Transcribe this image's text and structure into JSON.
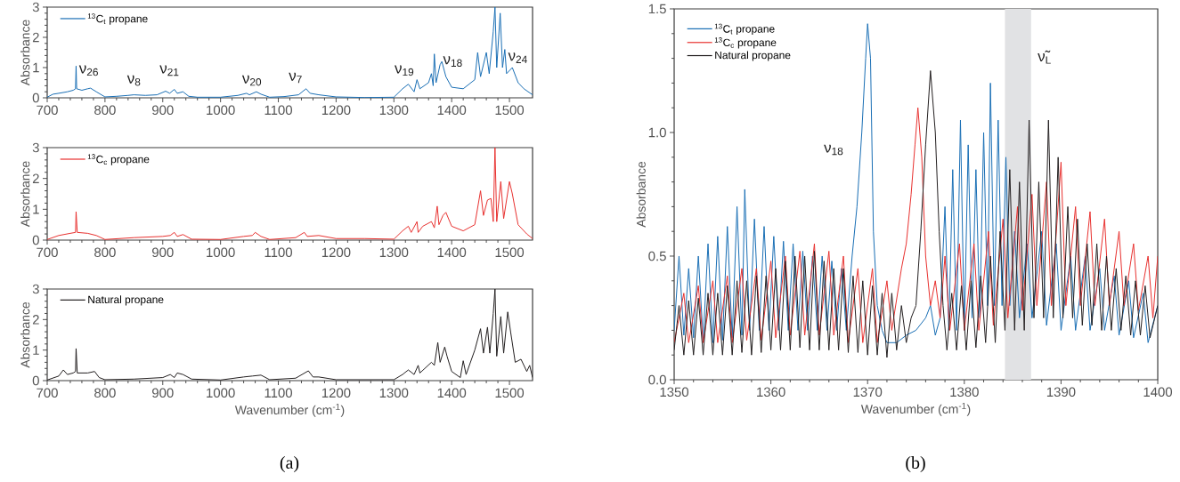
{
  "chart_data": [
    {
      "type": "line",
      "ylabel": "Absorbance",
      "xlim": [
        700,
        1540
      ],
      "ylim": [
        0,
        3
      ],
      "xticks": [
        700,
        800,
        900,
        1000,
        1100,
        1200,
        1300,
        1400,
        1500
      ],
      "yticks": [
        0,
        1,
        2,
        3
      ],
      "legend": "top left",
      "series": [
        {
          "name": "$^{13}$C$_{t}$ propane",
          "color": "#1a6fb5",
          "x": [
            700,
            710,
            720,
            735,
            745,
            749,
            750,
            751,
            760,
            770,
            775,
            785,
            800,
            820,
            840,
            850,
            870,
            890,
            905,
            912,
            920,
            925,
            935,
            945,
            960,
            1000,
            1030,
            1045,
            1050,
            1062,
            1070,
            1085,
            1110,
            1135,
            1148,
            1155,
            1170,
            1200,
            1250,
            1300,
            1315,
            1325,
            1335,
            1340,
            1345,
            1360,
            1365,
            1368,
            1370,
            1373,
            1380,
            1383,
            1390,
            1400,
            1420,
            1440,
            1445,
            1450,
            1460,
            1465,
            1472,
            1475,
            1478,
            1484,
            1488,
            1492,
            1495,
            1505,
            1515,
            1525,
            1540
          ],
          "values": [
            0.02,
            0.12,
            0.15,
            0.2,
            0.25,
            0.3,
            1.05,
            0.3,
            0.25,
            0.3,
            0.32,
            0.2,
            0.03,
            0.05,
            0.08,
            0.1,
            0.08,
            0.1,
            0.22,
            0.15,
            0.28,
            0.15,
            0.2,
            0.05,
            0.02,
            0.02,
            0.08,
            0.15,
            0.1,
            0.2,
            0.12,
            0.02,
            0.04,
            0.1,
            0.3,
            0.15,
            0.1,
            0.03,
            0.01,
            0.02,
            0.3,
            0.45,
            0.2,
            0.6,
            0.3,
            0.5,
            0.8,
            0.4,
            1.45,
            0.5,
            1.1,
            1.2,
            0.7,
            0.35,
            0.3,
            0.6,
            1.5,
            0.7,
            1.5,
            0.8,
            2.2,
            3.0,
            1.0,
            2.8,
            1.0,
            1.6,
            0.8,
            1.0,
            0.5,
            0.3,
            0.1
          ]
        }
      ],
      "annotations": [
        "ν$_{26}$",
        "ν$_{8}$",
        "ν$_{21}$",
        "ν$_{20}$",
        "ν$_{7}$",
        "ν$_{19}$",
        "ν$_{18}$",
        "ν$_{24}$"
      ]
    },
    {
      "type": "line",
      "ylabel": "Absorbance",
      "xlim": [
        700,
        1540
      ],
      "ylim": [
        0,
        3
      ],
      "xticks": [
        700,
        800,
        900,
        1000,
        1100,
        1200,
        1300,
        1400,
        1500
      ],
      "yticks": [
        0,
        1,
        2,
        3
      ],
      "legend": "top left",
      "series": [
        {
          "name": "$^{13}$C$_{c}$ propane",
          "color": "#e8312f",
          "x": [
            700,
            720,
            740,
            749,
            750,
            752,
            770,
            785,
            800,
            850,
            900,
            913,
            920,
            925,
            935,
            950,
            1000,
            1040,
            1055,
            1060,
            1070,
            1085,
            1130,
            1145,
            1150,
            1170,
            1200,
            1250,
            1300,
            1315,
            1325,
            1330,
            1340,
            1342,
            1350,
            1365,
            1370,
            1375,
            1378,
            1385,
            1390,
            1400,
            1420,
            1440,
            1450,
            1455,
            1462,
            1468,
            1472,
            1475,
            1478,
            1485,
            1490,
            1500,
            1505,
            1515,
            1530,
            1540
          ],
          "values": [
            0.02,
            0.15,
            0.22,
            0.25,
            0.92,
            0.25,
            0.22,
            0.15,
            0.02,
            0.08,
            0.12,
            0.15,
            0.25,
            0.12,
            0.18,
            0.03,
            0.02,
            0.12,
            0.15,
            0.25,
            0.12,
            0.02,
            0.08,
            0.25,
            0.12,
            0.15,
            0.05,
            0.05,
            0.03,
            0.3,
            0.45,
            0.25,
            0.6,
            0.25,
            0.45,
            0.6,
            0.4,
            1.1,
            0.5,
            0.8,
            0.9,
            0.45,
            0.3,
            0.5,
            1.6,
            0.8,
            1.3,
            1.35,
            0.6,
            3.0,
            0.6,
            1.9,
            0.7,
            1.9,
            1.5,
            0.5,
            0.2,
            0.05
          ]
        }
      ]
    },
    {
      "type": "line",
      "xlabel": "Wavenumber (cm$^{-1}$)",
      "ylabel": "Absorbance",
      "xlim": [
        700,
        1540
      ],
      "ylim": [
        0,
        3
      ],
      "xticks": [
        700,
        800,
        900,
        1000,
        1100,
        1200,
        1300,
        1400,
        1500
      ],
      "yticks": [
        0,
        1,
        2,
        3
      ],
      "legend": "top left",
      "series": [
        {
          "name": "Natural propane",
          "color": "#231f20",
          "x": [
            700,
            720,
            728,
            735,
            745,
            749,
            750,
            752,
            770,
            782,
            790,
            800,
            850,
            900,
            913,
            920,
            925,
            935,
            950,
            1000,
            1040,
            1055,
            1070,
            1085,
            1130,
            1152,
            1160,
            1170,
            1200,
            1300,
            1315,
            1325,
            1335,
            1342,
            1345,
            1365,
            1370,
            1376,
            1380,
            1388,
            1392,
            1400,
            1415,
            1420,
            1425,
            1440,
            1450,
            1455,
            1462,
            1466,
            1472,
            1475,
            1478,
            1485,
            1490,
            1497,
            1502,
            1510,
            1520,
            1530,
            1535,
            1540
          ],
          "values": [
            0.02,
            0.15,
            0.35,
            0.2,
            0.25,
            0.3,
            1.05,
            0.25,
            0.25,
            0.3,
            0.1,
            0.03,
            0.05,
            0.1,
            0.2,
            0.1,
            0.25,
            0.2,
            0.05,
            0.02,
            0.12,
            0.15,
            0.18,
            0.03,
            0.08,
            0.32,
            0.12,
            0.12,
            0.03,
            0.03,
            0.2,
            0.35,
            0.2,
            0.5,
            0.25,
            0.6,
            0.5,
            1.25,
            0.6,
            1.1,
            0.8,
            0.3,
            0.1,
            0.65,
            0.2,
            1.0,
            1.7,
            0.9,
            1.75,
            0.9,
            2.2,
            3.0,
            0.8,
            2.1,
            0.9,
            2.25,
            1.6,
            0.6,
            0.7,
            0.3,
            0.5,
            0.1
          ]
        }
      ],
      "annotations": [
        "(a)"
      ]
    },
    {
      "type": "line",
      "xlabel": "Wavenumber (cm$^{-1}$)",
      "ylabel": "Absorbance",
      "xlim": [
        1350,
        1400
      ],
      "ylim": [
        0,
        1.5
      ],
      "xticks": [
        1350,
        1360,
        1370,
        1380,
        1390,
        1400
      ],
      "yticks": [
        {
          "value": 0,
          "label": "0.0"
        },
        {
          "value": 0.5,
          "label": "0.5"
        },
        {
          "value": 1,
          "label": "1.0"
        },
        {
          "value": 1.5,
          "label": "1.5"
        }
      ],
      "legend": "top left",
      "bands": [
        {
          "axis": "x",
          "from": 1384.2,
          "to": 1386.9,
          "color": "#e1e2e4"
        }
      ],
      "series": [
        {
          "name": "$^{13}$C$_{t}$ propane",
          "color": "#1a6fb5",
          "x": [
            1350,
            1350.5,
            1351,
            1351.5,
            1352,
            1352.5,
            1353,
            1353.5,
            1354,
            1354.5,
            1355,
            1355.5,
            1356,
            1356.5,
            1357,
            1357.3,
            1357.8,
            1358.3,
            1358.8,
            1359.3,
            1359.8,
            1360.3,
            1360.8,
            1361.3,
            1361.8,
            1362.3,
            1362.8,
            1363.3,
            1363.8,
            1364.3,
            1364.8,
            1365.3,
            1365.8,
            1366.3,
            1366.8,
            1367.3,
            1367.8,
            1368.4,
            1368.9,
            1369.4,
            1369.8,
            1370.0,
            1370.3,
            1370.6,
            1371,
            1371.5,
            1372,
            1373,
            1374,
            1375,
            1376,
            1376.5,
            1377,
            1377.5,
            1378,
            1378.4,
            1378.8,
            1379.2,
            1379.6,
            1380,
            1380.4,
            1380.8,
            1381.2,
            1381.6,
            1382,
            1382.4,
            1382.7,
            1383.1,
            1383.5,
            1383.9,
            1384.3,
            1384.7,
            1385.2,
            1385.7,
            1386.5,
            1387,
            1388,
            1388.5,
            1389.5,
            1390,
            1391,
            1391.5,
            1392.5,
            1393,
            1394,
            1394.5,
            1395.5,
            1396,
            1397,
            1397.5,
            1398.5,
            1399,
            1400
          ],
          "values": [
            0.2,
            0.5,
            0.18,
            0.45,
            0.17,
            0.5,
            0.16,
            0.55,
            0.15,
            0.58,
            0.16,
            0.62,
            0.17,
            0.7,
            0.18,
            0.77,
            0.2,
            0.65,
            0.2,
            0.62,
            0.2,
            0.58,
            0.2,
            0.56,
            0.2,
            0.55,
            0.2,
            0.52,
            0.2,
            0.5,
            0.2,
            0.5,
            0.2,
            0.48,
            0.2,
            0.45,
            0.2,
            0.5,
            0.7,
            1.0,
            1.3,
            1.44,
            1.3,
            0.6,
            0.3,
            0.2,
            0.15,
            0.15,
            0.18,
            0.2,
            0.25,
            0.3,
            0.18,
            0.25,
            0.7,
            0.2,
            0.85,
            0.2,
            1.05,
            0.2,
            0.95,
            0.25,
            0.85,
            0.25,
            1.0,
            0.3,
            1.2,
            0.3,
            1.05,
            0.3,
            0.9,
            0.3,
            0.6,
            0.25,
            0.55,
            0.25,
            0.6,
            0.22,
            0.55,
            0.2,
            0.5,
            0.2,
            0.5,
            0.2,
            0.45,
            0.2,
            0.42,
            0.18,
            0.4,
            0.17,
            0.35,
            0.15,
            0.3
          ]
        },
        {
          "name": "$^{13}$C$_{c}$ propane",
          "color": "#e8312f",
          "x": [
            1350,
            1351,
            1351.5,
            1352.5,
            1353,
            1354,
            1354.5,
            1355.5,
            1356,
            1357,
            1357.5,
            1358.5,
            1359,
            1360,
            1360.5,
            1361.5,
            1362,
            1363,
            1363.5,
            1364.5,
            1365,
            1366,
            1366.5,
            1367.5,
            1368,
            1369,
            1369.5,
            1370.5,
            1371,
            1372,
            1372.5,
            1373.5,
            1374,
            1374.5,
            1374.9,
            1375.2,
            1375.6,
            1376,
            1376.5,
            1377,
            1377.5,
            1378,
            1378.5,
            1379.5,
            1380,
            1381,
            1381.5,
            1382.5,
            1383,
            1384,
            1384.5,
            1385.5,
            1386,
            1387,
            1387.5,
            1388.5,
            1389,
            1390,
            1390.5,
            1391.5,
            1392,
            1393,
            1393.5,
            1394.5,
            1395,
            1396,
            1396.5,
            1397.5,
            1398,
            1399,
            1399.5,
            1400
          ],
          "values": [
            0.15,
            0.35,
            0.15,
            0.38,
            0.15,
            0.4,
            0.15,
            0.42,
            0.15,
            0.45,
            0.16,
            0.45,
            0.16,
            0.48,
            0.17,
            0.5,
            0.18,
            0.52,
            0.18,
            0.55,
            0.18,
            0.52,
            0.18,
            0.5,
            0.15,
            0.45,
            0.15,
            0.45,
            0.15,
            0.4,
            0.2,
            0.45,
            0.55,
            0.75,
            0.95,
            1.1,
            0.9,
            0.5,
            0.3,
            0.4,
            0.25,
            0.5,
            0.2,
            0.55,
            0.2,
            0.55,
            0.2,
            0.6,
            0.22,
            0.65,
            0.25,
            0.7,
            0.28,
            0.75,
            0.3,
            0.8,
            0.3,
            0.88,
            0.3,
            0.7,
            0.3,
            0.68,
            0.3,
            0.65,
            0.3,
            0.6,
            0.3,
            0.55,
            0.28,
            0.5,
            0.25,
            0.5
          ]
        },
        {
          "name": "Natural propane",
          "color": "#231f20",
          "x": [
            1350,
            1350.5,
            1351,
            1351.5,
            1352,
            1352.5,
            1353,
            1353.5,
            1354,
            1354.5,
            1355,
            1355.5,
            1356,
            1356.5,
            1357,
            1357.5,
            1358,
            1358.5,
            1359,
            1359.5,
            1360,
            1360.5,
            1361,
            1361.5,
            1362,
            1362.5,
            1363,
            1363.5,
            1364,
            1364.5,
            1365,
            1365.5,
            1366,
            1366.5,
            1367,
            1367.5,
            1368,
            1368.5,
            1369,
            1369.5,
            1370,
            1370.5,
            1371,
            1371.5,
            1372,
            1372.5,
            1373,
            1373.5,
            1374,
            1374.5,
            1375,
            1375.5,
            1376,
            1376.5,
            1377,
            1377.4,
            1377.8,
            1378.2,
            1378.7,
            1379.2,
            1379.7,
            1380.2,
            1380.7,
            1381.2,
            1381.7,
            1382.2,
            1382.7,
            1383.2,
            1383.7,
            1384.2,
            1384.7,
            1385.2,
            1385.7,
            1386.2,
            1386.7,
            1387.2,
            1387.7,
            1388.2,
            1388.7,
            1389.2,
            1389.7,
            1390.2,
            1390.7,
            1391.2,
            1391.7,
            1392.2,
            1392.7,
            1393.2,
            1393.7,
            1394.2,
            1394.7,
            1395.2,
            1395.7,
            1396.2,
            1396.7,
            1397.2,
            1397.7,
            1398.2,
            1398.7,
            1399.2,
            1400
          ],
          "values": [
            0.12,
            0.3,
            0.1,
            0.32,
            0.1,
            0.33,
            0.1,
            0.35,
            0.1,
            0.35,
            0.1,
            0.38,
            0.1,
            0.4,
            0.11,
            0.4,
            0.1,
            0.42,
            0.11,
            0.42,
            0.12,
            0.45,
            0.12,
            0.48,
            0.12,
            0.5,
            0.13,
            0.5,
            0.12,
            0.52,
            0.12,
            0.48,
            0.12,
            0.45,
            0.12,
            0.45,
            0.11,
            0.42,
            0.11,
            0.4,
            0.1,
            0.38,
            0.1,
            0.35,
            0.09,
            0.35,
            0.12,
            0.3,
            0.15,
            0.25,
            0.3,
            0.6,
            0.95,
            1.25,
            1.0,
            0.6,
            0.3,
            0.12,
            0.35,
            0.12,
            0.38,
            0.12,
            0.4,
            0.13,
            0.42,
            0.15,
            0.5,
            0.15,
            0.6,
            0.2,
            0.85,
            0.2,
            0.8,
            0.2,
            1.05,
            0.25,
            0.8,
            0.25,
            1.05,
            0.25,
            0.9,
            0.25,
            0.7,
            0.25,
            0.65,
            0.22,
            0.55,
            0.22,
            0.55,
            0.2,
            0.5,
            0.2,
            0.45,
            0.2,
            0.42,
            0.18,
            0.4,
            0.18,
            0.38,
            0.17,
            0.3
          ]
        }
      ],
      "annotations": [
        "ν$_{18}$",
        "ν̃$_{L}$",
        "(b)"
      ]
    }
  ]
}
